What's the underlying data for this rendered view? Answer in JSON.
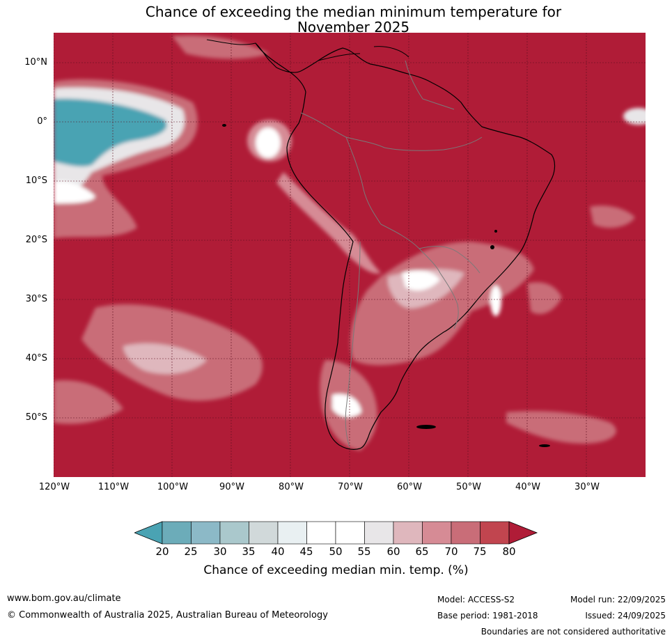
{
  "title": {
    "line1": "Chance of exceeding the median minimum temperature for",
    "line2": "November 2025"
  },
  "map": {
    "region": "South America",
    "lat_labels": [
      "10°N",
      "0°",
      "10°S",
      "20°S",
      "30°S",
      "40°S",
      "50°S"
    ],
    "lon_labels": [
      "120°W",
      "110°W",
      "100°W",
      "90°W",
      "80°W",
      "70°W",
      "60°W",
      "50°W",
      "40°W",
      "30°W"
    ],
    "background_color": "#b01c37",
    "grid": true
  },
  "colorbar": {
    "ticks": [
      "20",
      "25",
      "30",
      "35",
      "40",
      "45",
      "50",
      "55",
      "60",
      "65",
      "70",
      "75",
      "80"
    ],
    "colors": [
      "#4aa3b3",
      "#6cacb9",
      "#8cb9c7",
      "#aac8cc",
      "#d1d9da",
      "#e9f0f2",
      "#ffffff",
      "#ffffff",
      "#e8e6e8",
      "#dfb7bd",
      "#d68b95",
      "#c96d78",
      "#c1454f",
      "#b01c37"
    ],
    "label": "Chance of exceeding median min. temp. (%)"
  },
  "footer": {
    "url": "www.bom.gov.au/climate",
    "copyright": "© Commonwealth of Australia 2025, Australian Bureau of Meteorology",
    "model": "Model: ACCESS-S2",
    "base_period": "Base period: 1981-2018",
    "model_run": "Model run: 22/09/2025",
    "issued": "Issued: 24/09/2025",
    "disclaimer": "Boundaries are not considered authoritative"
  }
}
